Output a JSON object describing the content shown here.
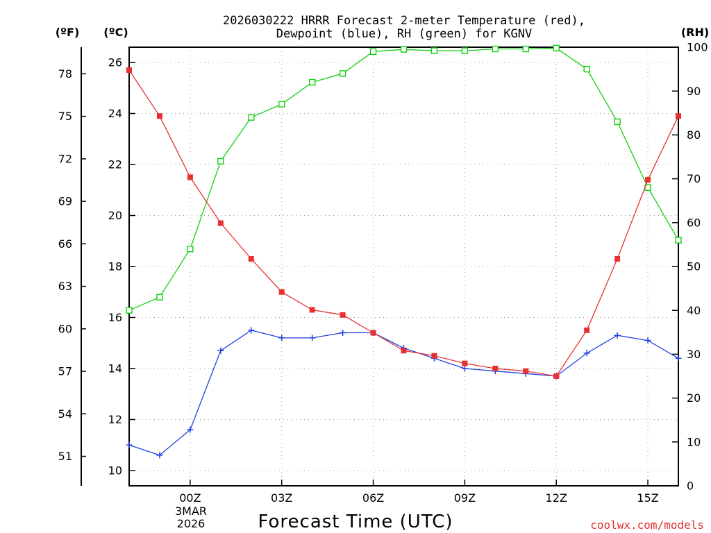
{
  "chart_data": {
    "type": "line",
    "title_line1": "2026030222 HRRR Forecast 2-meter Temperature (red),",
    "title_line2": "Dewpoint (blue), RH (green) for KGNV",
    "unit_f": "(ºF)",
    "unit_c": "(ºC)",
    "unit_rh": "(RH)",
    "xlabel": "Forecast Time (UTC)",
    "credit": "coolwx.com/models",
    "date_line1": "3MAR",
    "date_line2": "2026",
    "x_hours": [
      -2,
      -1,
      0,
      1,
      2,
      3,
      4,
      5,
      6,
      7,
      8,
      9,
      10,
      11,
      12,
      13,
      14,
      15,
      16
    ],
    "x_ticks": [
      {
        "hour": 0,
        "label": "00Z"
      },
      {
        "hour": 3,
        "label": "03Z"
      },
      {
        "hour": 6,
        "label": "06Z"
      },
      {
        "hour": 9,
        "label": "09Z"
      },
      {
        "hour": 12,
        "label": "12Z"
      },
      {
        "hour": 15,
        "label": "15Z"
      }
    ],
    "x_range": [
      -2,
      16
    ],
    "celsius_range": [
      9.4,
      26.6
    ],
    "celsius_ticks": [
      "10",
      "12",
      "14",
      "16",
      "18",
      "20",
      "22",
      "24",
      "26"
    ],
    "fahrenheit_ticks": [
      "51",
      "54",
      "57",
      "60",
      "63",
      "66",
      "69",
      "72",
      "75",
      "78"
    ],
    "rh_range": [
      0,
      100
    ],
    "rh_ticks": [
      "0",
      "10",
      "20",
      "30",
      "40",
      "50",
      "60",
      "70",
      "80",
      "90",
      "100"
    ],
    "series": [
      {
        "name": "Temperature",
        "color": "#e83030",
        "marker": "filled-square",
        "values": [
          25.7,
          23.9,
          21.5,
          19.7,
          18.3,
          17.0,
          16.3,
          16.1,
          15.4,
          14.7,
          14.5,
          14.2,
          14.0,
          13.9,
          13.7,
          15.5,
          18.3,
          21.4,
          23.9
        ]
      },
      {
        "name": "Dewpoint",
        "color": "#2040e0",
        "marker": "plus",
        "values": [
          11.0,
          10.6,
          11.6,
          14.7,
          15.5,
          15.2,
          15.2,
          15.4,
          15.4,
          14.8,
          14.4,
          14.0,
          13.9,
          13.8,
          13.7,
          14.6,
          15.3,
          15.1,
          14.4
        ]
      },
      {
        "name": "RH",
        "color": "#10d010",
        "marker": "open-square",
        "values": [
          40,
          43,
          54,
          74,
          84,
          87,
          92,
          94,
          99,
          99.5,
          99.2,
          99.2,
          99.6,
          99.6,
          99.8,
          95,
          83,
          68,
          56
        ]
      }
    ]
  }
}
